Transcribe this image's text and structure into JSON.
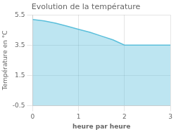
{
  "chart_data": {
    "type": "area",
    "title": "Evolution de la température",
    "xlabel": "heure par heure",
    "ylabel": "Température en °C",
    "x": [
      0,
      0.25,
      0.5,
      0.75,
      1.0,
      1.25,
      1.5,
      1.75,
      2.0,
      2.5,
      3.0
    ],
    "values": [
      5.2,
      5.1,
      4.95,
      4.75,
      4.55,
      4.35,
      4.1,
      3.85,
      3.5,
      3.5,
      3.5
    ],
    "color": "#5bbfdb",
    "xlim": [
      0,
      3
    ],
    "ylim": [
      -0.5,
      5.5
    ],
    "xticks": [
      0,
      1,
      2,
      3
    ],
    "yticks": [
      -0.5,
      1.5,
      3.5,
      5.5
    ],
    "grid": true
  }
}
